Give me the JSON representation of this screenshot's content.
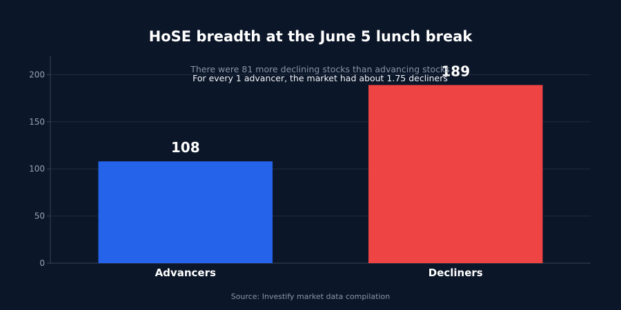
{
  "page": {
    "background": "#0b1628"
  },
  "chart_data": {
    "type": "bar",
    "title": "HoSE breadth at the June 5 lunch break",
    "categories": [
      "Advancers",
      "Decliners"
    ],
    "values": [
      108,
      189
    ],
    "bar_colors": [
      "#2563eb",
      "#ef4444"
    ],
    "ylim": [
      0,
      220
    ],
    "yticks": [
      0,
      50,
      100,
      150,
      200
    ],
    "grid": true,
    "annotations": [
      "There were 81 more declining stocks than advancing stocks",
      "For every 1 advancer, the market had about 1.75 decliners"
    ],
    "source": "Source: Investify market data compilation"
  }
}
